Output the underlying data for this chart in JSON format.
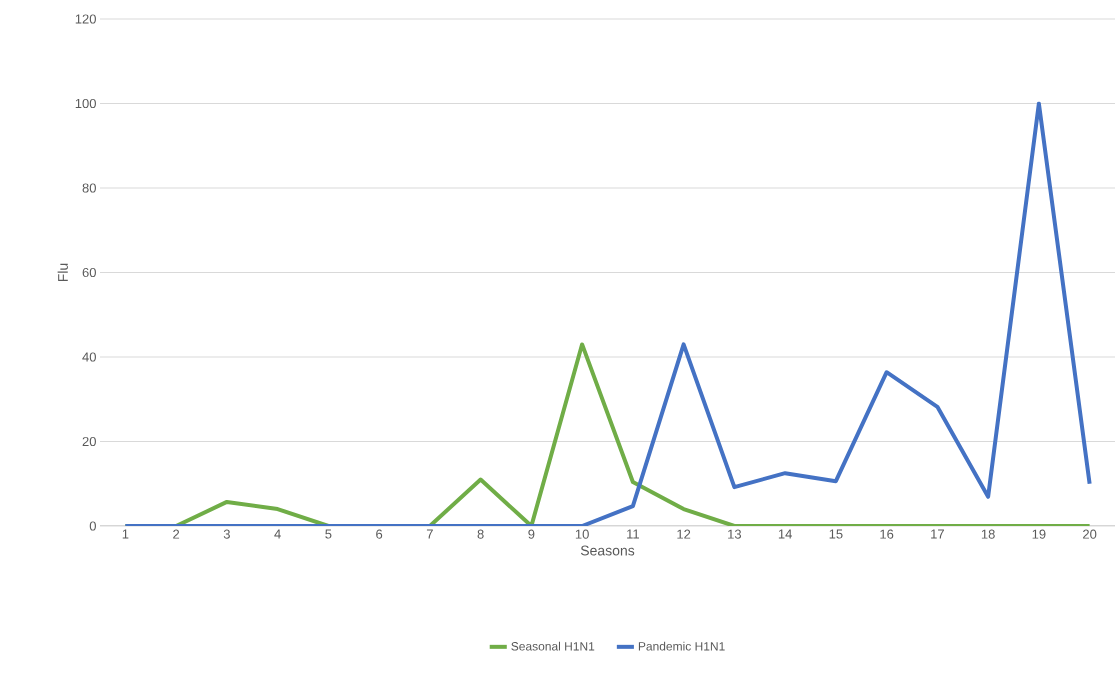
{
  "chart_data": {
    "type": "line",
    "xlabel": "Seasons",
    "ylabel": "Flu",
    "categories": [
      "1",
      "2",
      "3",
      "4",
      "5",
      "6",
      "7",
      "8",
      "9",
      "10",
      "11",
      "12",
      "13",
      "14",
      "15",
      "16",
      "17",
      "18",
      "19",
      "20"
    ],
    "series": [
      {
        "name": "Seasonal H1N1",
        "color": "#70ad47",
        "values": [
          0,
          0,
          5.7,
          4,
          0,
          0,
          0,
          11,
          0,
          43,
          10.4,
          4,
          0,
          0,
          0,
          0,
          0,
          0,
          0,
          0
        ]
      },
      {
        "name": "Pandemic H1N1",
        "color": "#4472c4",
        "values": [
          0,
          0,
          0,
          0,
          0,
          0,
          0,
          0,
          0,
          0,
          4.7,
          43,
          9.2,
          12.5,
          10.6,
          36.4,
          28.2,
          6.9,
          100,
          10
        ]
      }
    ],
    "ylim": [
      0,
      120
    ],
    "yticks": [
      0,
      20,
      40,
      60,
      80,
      100,
      120
    ],
    "grid": "y",
    "legend": "bottom",
    "marker": "none",
    "line_style": "solid"
  }
}
